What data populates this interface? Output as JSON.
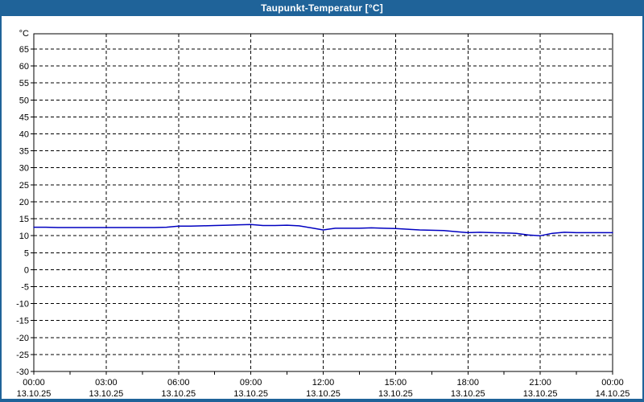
{
  "window": {
    "title": "Taupunkt-Temperatur [°C]",
    "titlebar_color": "#1f6399",
    "background_color": "#ffffff"
  },
  "chart_data": {
    "type": "line",
    "title": "Taupunkt-Temperatur [°C]",
    "ylabel_unit": "°C",
    "grid": "dashed",
    "legend_position": "none",
    "y_axis": {
      "min": -30,
      "max": 65,
      "step": 5,
      "top_value": 69.5
    },
    "x_axis": {
      "min_hours": 0,
      "max_hours": 24,
      "major_step_hours": 3,
      "minor_tick_hours": 1.5
    },
    "x_ticks": [
      {
        "time": "00:00",
        "date": "13.10.25"
      },
      {
        "time": "03:00",
        "date": "13.10.25"
      },
      {
        "time": "06:00",
        "date": "13.10.25"
      },
      {
        "time": "09:00",
        "date": "13.10.25"
      },
      {
        "time": "12:00",
        "date": "13.10.25"
      },
      {
        "time": "15:00",
        "date": "13.10.25"
      },
      {
        "time": "18:00",
        "date": "13.10.25"
      },
      {
        "time": "21:00",
        "date": "13.10.25"
      },
      {
        "time": "00:00",
        "date": "14.10.25"
      }
    ],
    "series": [
      {
        "name": "Taupunkt-Temperatur",
        "unit": "°C",
        "color": "#0000c0",
        "points_hours_value": [
          [
            0,
            12.5
          ],
          [
            0.5,
            12.5
          ],
          [
            1,
            12.4
          ],
          [
            1.5,
            12.4
          ],
          [
            2,
            12.4
          ],
          [
            2.5,
            12.4
          ],
          [
            3,
            12.4
          ],
          [
            3.5,
            12.4
          ],
          [
            4,
            12.4
          ],
          [
            4.5,
            12.4
          ],
          [
            5,
            12.4
          ],
          [
            5.5,
            12.5
          ],
          [
            6,
            12.8
          ],
          [
            6.5,
            12.8
          ],
          [
            7,
            12.9
          ],
          [
            7.5,
            13.0
          ],
          [
            8,
            13.1
          ],
          [
            8.5,
            13.2
          ],
          [
            9,
            13.3
          ],
          [
            9.5,
            13.0
          ],
          [
            10,
            13.0
          ],
          [
            10.5,
            13.1
          ],
          [
            11,
            12.9
          ],
          [
            11.5,
            12.3
          ],
          [
            12,
            11.7
          ],
          [
            12.5,
            12.2
          ],
          [
            13,
            12.2
          ],
          [
            13.5,
            12.2
          ],
          [
            14,
            12.3
          ],
          [
            14.5,
            12.2
          ],
          [
            15,
            12.1
          ],
          [
            15.5,
            11.9
          ],
          [
            16,
            11.7
          ],
          [
            16.5,
            11.6
          ],
          [
            17,
            11.5
          ],
          [
            17.5,
            11.2
          ],
          [
            18,
            10.9
          ],
          [
            18.5,
            11.0
          ],
          [
            19,
            10.9
          ],
          [
            19.5,
            10.8
          ],
          [
            20,
            10.7
          ],
          [
            20.5,
            10.2
          ],
          [
            21,
            10.0
          ],
          [
            21.5,
            10.7
          ],
          [
            22,
            11.0
          ],
          [
            22.5,
            10.9
          ],
          [
            23,
            10.9
          ],
          [
            23.5,
            10.9
          ],
          [
            24,
            10.9
          ]
        ]
      }
    ]
  }
}
